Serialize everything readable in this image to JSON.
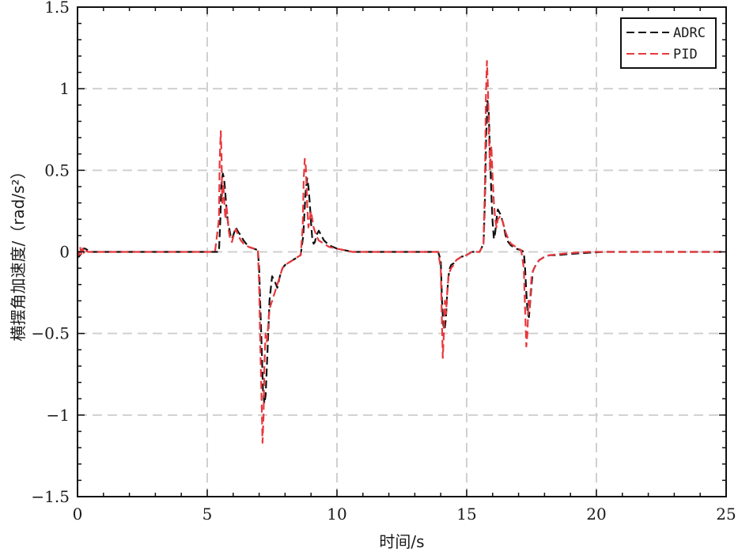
{
  "chart_data": {
    "type": "line",
    "title": "",
    "xlabel": "时间/s",
    "ylabel": "横摆角加速度/（rad/s²）",
    "xlim": [
      0,
      25
    ],
    "ylim": [
      -1.5,
      1.5
    ],
    "xticks": [
      0,
      5,
      10,
      15,
      20,
      25
    ],
    "xtick_labels": [
      "0",
      "5",
      "10",
      "15",
      "20",
      "25"
    ],
    "yticks": [
      -1.5,
      -1,
      -0.5,
      0,
      0.5,
      1,
      1.5
    ],
    "ytick_labels": [
      "−1.5",
      "−1",
      "−0.5",
      "0",
      "0.5",
      "1",
      "1.5"
    ],
    "grid": true,
    "legend_position": "top-right",
    "series": [
      {
        "name": "ADRC",
        "color": "#111111",
        "dash": "dashed",
        "x": [
          0,
          0.05,
          0.1,
          0.15,
          0.2,
          0.3,
          0.4,
          0.5,
          0.7,
          1,
          2,
          3,
          4,
          5,
          5.3,
          5.45,
          5.5,
          5.55,
          5.6,
          5.65,
          5.7,
          5.75,
          5.8,
          5.85,
          5.9,
          5.95,
          6.0,
          6.1,
          6.2,
          6.3,
          6.4,
          6.5,
          6.6,
          6.8,
          6.95,
          7.0,
          7.05,
          7.1,
          7.15,
          7.2,
          7.25,
          7.3,
          7.35,
          7.4,
          7.5,
          7.6,
          7.7,
          7.8,
          7.9,
          8.0,
          8.2,
          8.4,
          8.6,
          8.7,
          8.75,
          8.8,
          8.85,
          8.9,
          8.95,
          9.0,
          9.05,
          9.1,
          9.15,
          9.2,
          9.3,
          9.5,
          9.7,
          10.0,
          10.3,
          10.6,
          11,
          12,
          13,
          13.9,
          14.0,
          14.05,
          14.1,
          14.15,
          14.2,
          14.25,
          14.3,
          14.35,
          14.4,
          14.5,
          14.6,
          14.8,
          15.0,
          15.2,
          15.5,
          15.65,
          15.7,
          15.75,
          15.8,
          15.85,
          15.9,
          15.95,
          16.0,
          16.05,
          16.1,
          16.15,
          16.2,
          16.3,
          16.4,
          16.5,
          16.6,
          16.7,
          16.9,
          17.1,
          17.2,
          17.25,
          17.3,
          17.35,
          17.4,
          17.45,
          17.5,
          17.55,
          17.6,
          17.7,
          17.8,
          17.9,
          18.0,
          18.2,
          18.5,
          18.8,
          19.2,
          19.7,
          20.3,
          21,
          22,
          23,
          24,
          25
        ],
        "y": [
          0,
          -0.03,
          -0.02,
          0,
          0.02,
          0.02,
          0.01,
          0,
          0,
          0,
          0,
          0,
          0,
          0,
          0,
          0,
          0.18,
          0.42,
          0.48,
          0.45,
          0.35,
          0.25,
          0.18,
          0.14,
          0.1,
          0.08,
          0.1,
          0.15,
          0.12,
          0.1,
          0.07,
          0.05,
          0.03,
          0.02,
          0.01,
          -0.1,
          -0.35,
          -0.6,
          -0.85,
          -0.93,
          -0.88,
          -0.7,
          -0.5,
          -0.3,
          -0.15,
          -0.18,
          -0.22,
          -0.15,
          -0.1,
          -0.08,
          -0.06,
          -0.04,
          -0.02,
          0.1,
          0.25,
          0.38,
          0.45,
          0.4,
          0.3,
          0.18,
          0.08,
          0.05,
          0.06,
          0.1,
          0.13,
          0.07,
          0.04,
          0.02,
          0.01,
          0,
          0,
          0,
          0,
          0,
          -0.05,
          -0.3,
          -0.45,
          -0.48,
          -0.4,
          -0.25,
          -0.15,
          -0.1,
          -0.08,
          -0.07,
          -0.05,
          -0.03,
          -0.02,
          0,
          0,
          0.05,
          0.3,
          0.7,
          0.93,
          0.85,
          0.6,
          0.35,
          0.18,
          0.08,
          0.12,
          0.2,
          0.26,
          0.23,
          0.18,
          0.1,
          0.06,
          0.04,
          0.02,
          0.01,
          0,
          -0.1,
          -0.25,
          -0.38,
          -0.4,
          -0.3,
          -0.2,
          -0.12,
          -0.1,
          -0.07,
          -0.05,
          -0.04,
          -0.03,
          -0.02,
          -0.02,
          -0.015,
          -0.01,
          -0.005,
          0,
          0,
          0,
          0,
          0,
          0
        ]
      },
      {
        "name": "PID",
        "color": "#e8383d",
        "dash": "dashed",
        "x": [
          0,
          0.05,
          0.1,
          0.15,
          0.2,
          0.25,
          0.3,
          0.4,
          0.5,
          0.7,
          1,
          2,
          3,
          4,
          5,
          5.3,
          5.45,
          5.48,
          5.52,
          5.55,
          5.58,
          5.62,
          5.66,
          5.7,
          5.74,
          5.78,
          5.82,
          5.86,
          5.9,
          5.95,
          6.0,
          6.1,
          6.2,
          6.3,
          6.4,
          6.5,
          6.6,
          6.8,
          6.95,
          7.0,
          7.05,
          7.1,
          7.13,
          7.17,
          7.2,
          7.25,
          7.3,
          7.35,
          7.4,
          7.5,
          7.6,
          7.7,
          7.8,
          7.9,
          8.0,
          8.2,
          8.4,
          8.6,
          8.68,
          8.72,
          8.76,
          8.8,
          8.85,
          8.9,
          8.95,
          9.0,
          9.05,
          9.1,
          9.2,
          9.3,
          9.5,
          9.7,
          10.0,
          10.3,
          10.6,
          11,
          12,
          13,
          13.9,
          14.0,
          14.05,
          14.08,
          14.12,
          14.16,
          14.2,
          14.25,
          14.3,
          14.35,
          14.4,
          14.5,
          14.6,
          14.8,
          15.0,
          15.2,
          15.5,
          15.65,
          15.7,
          15.74,
          15.78,
          15.82,
          15.86,
          15.9,
          15.95,
          16.0,
          16.05,
          16.1,
          16.15,
          16.2,
          16.3,
          16.4,
          16.5,
          16.6,
          16.7,
          16.9,
          17.1,
          17.2,
          17.25,
          17.3,
          17.34,
          17.38,
          17.42,
          17.46,
          17.5,
          17.55,
          17.6,
          17.7,
          17.8,
          17.9,
          18.0,
          18.2,
          18.5,
          18.8,
          19.2,
          19.7,
          20.3,
          21,
          22,
          23,
          24,
          25
        ],
        "y": [
          0,
          -0.02,
          0.03,
          -0.02,
          0.02,
          -0.01,
          0.01,
          0,
          0,
          0,
          0,
          0,
          0,
          0,
          0,
          0,
          0.2,
          0.55,
          0.74,
          0.6,
          0.3,
          0.42,
          0.3,
          0.2,
          0.28,
          0.22,
          0.14,
          0.1,
          0.07,
          0.06,
          0.09,
          0.14,
          0.1,
          0.07,
          0.05,
          0.04,
          0.03,
          0.02,
          0.01,
          -0.2,
          -0.6,
          -0.95,
          -1.17,
          -1.0,
          -0.7,
          -0.5,
          -0.55,
          -0.45,
          -0.35,
          -0.3,
          -0.25,
          -0.2,
          -0.15,
          -0.1,
          -0.08,
          -0.06,
          -0.04,
          -0.02,
          0.15,
          0.45,
          0.57,
          0.52,
          0.3,
          0.15,
          0.2,
          0.25,
          0.2,
          0.15,
          0.1,
          0.07,
          0.05,
          0.03,
          0.02,
          0.01,
          0,
          0,
          0,
          0,
          0,
          -0.1,
          -0.45,
          -0.65,
          -0.5,
          -0.3,
          -0.38,
          -0.25,
          -0.15,
          -0.12,
          -0.1,
          -0.08,
          -0.05,
          -0.03,
          -0.02,
          0,
          0,
          0.05,
          0.4,
          0.95,
          1.17,
          1.0,
          0.7,
          0.5,
          0.65,
          0.45,
          0.3,
          0.2,
          0.15,
          0.2,
          0.22,
          0.18,
          0.12,
          0.08,
          0.05,
          0.03,
          0.01,
          -0.1,
          -0.35,
          -0.58,
          -0.5,
          -0.3,
          -0.35,
          -0.25,
          -0.15,
          -0.12,
          -0.1,
          -0.07,
          -0.05,
          -0.04,
          -0.03,
          -0.02,
          -0.015,
          -0.01,
          -0.005,
          0,
          0,
          0,
          0,
          0,
          0,
          0
        ]
      }
    ]
  }
}
